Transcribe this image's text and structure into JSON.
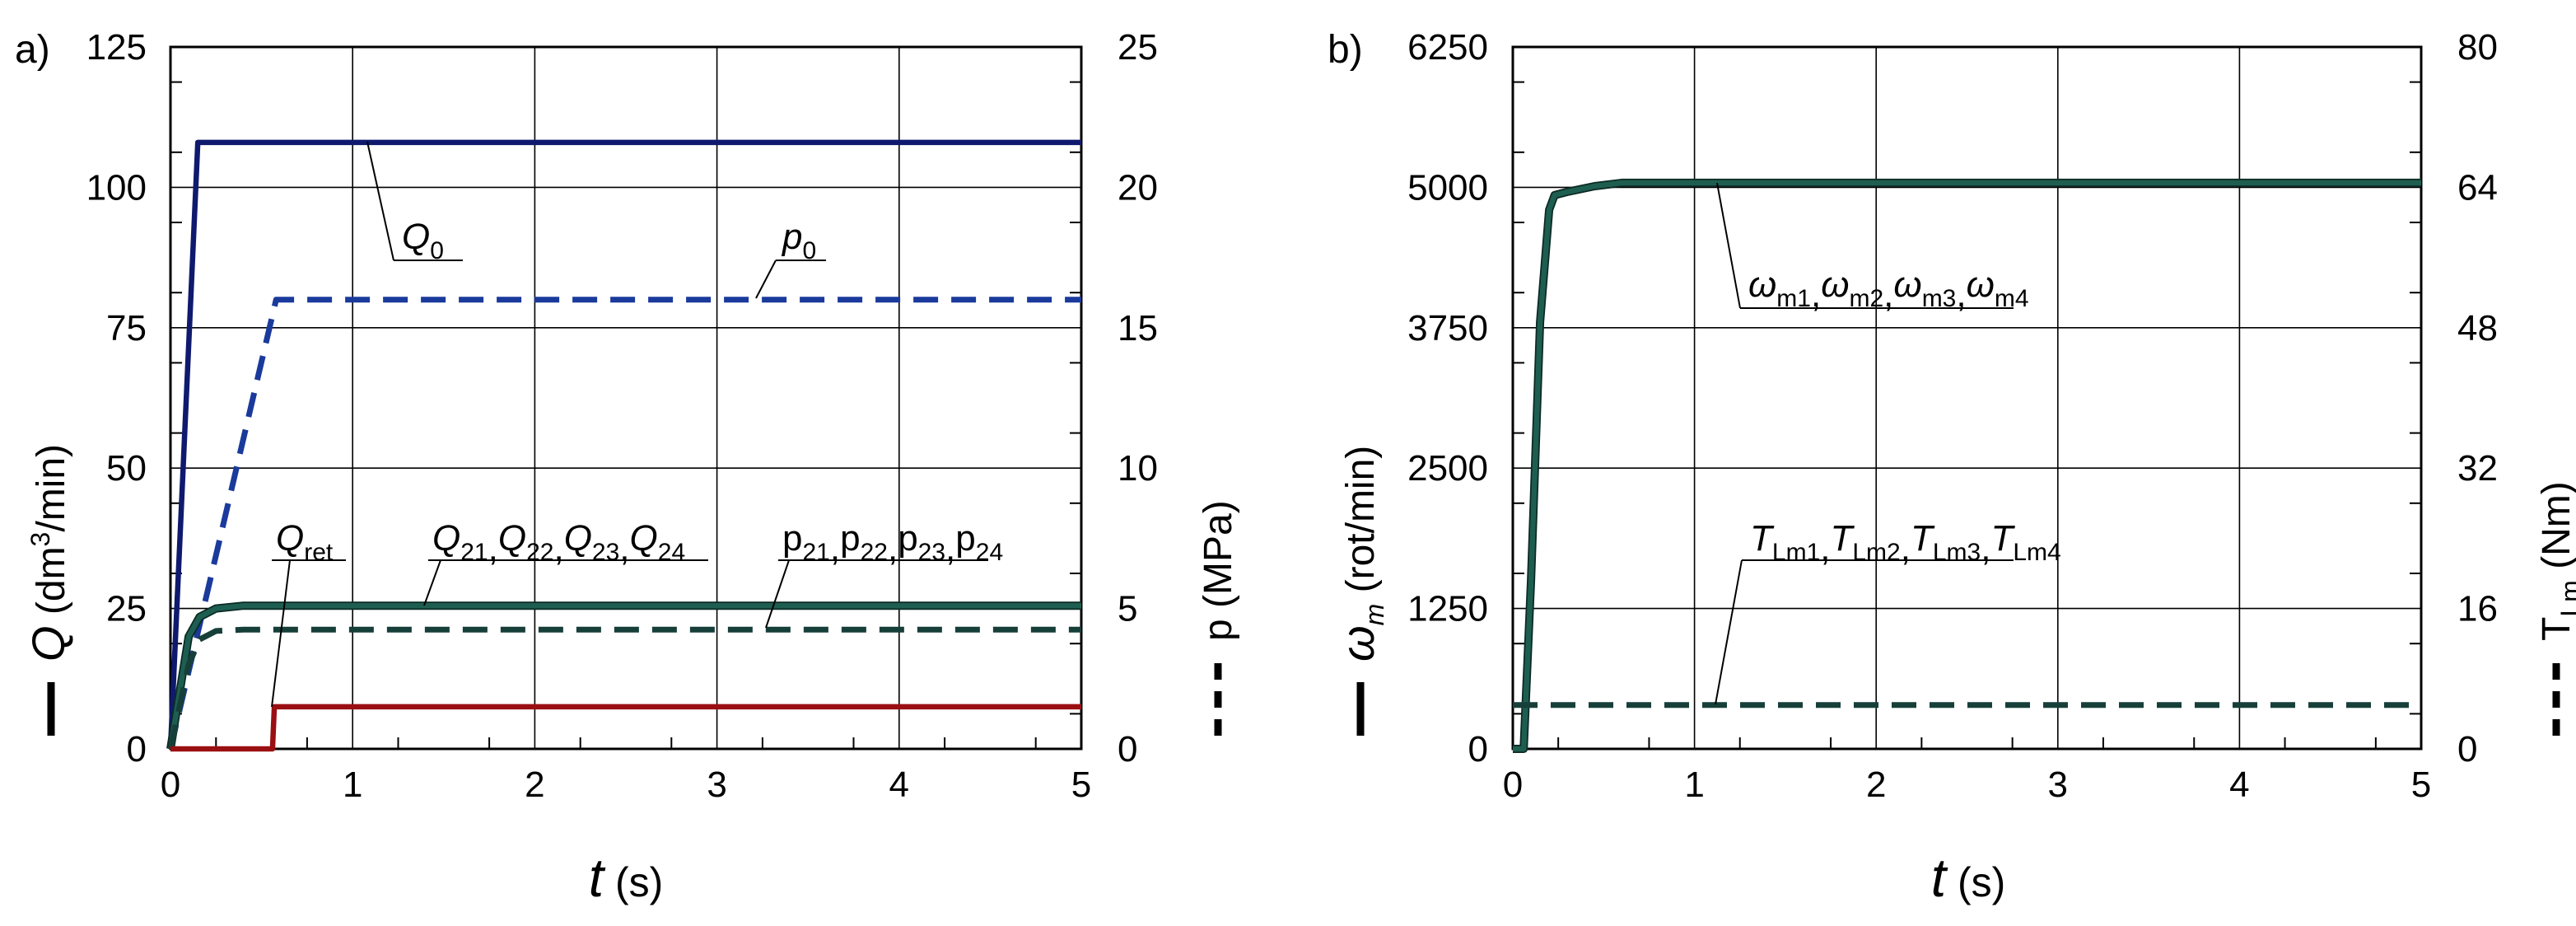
{
  "chart_data": [
    {
      "type": "line",
      "panel_label": "a)",
      "xlabel": {
        "var": "t",
        "unit": " (s)"
      },
      "ylabel_left": {
        "var": "Q",
        "unit_pre": " (dm",
        "sup": "3",
        "unit_post": "/min)"
      },
      "ylabel_right": "p (MPa)",
      "xlim": [
        0,
        5
      ],
      "ylim_left": [
        0,
        125
      ],
      "ylim_right": [
        0,
        25
      ],
      "x_ticks": [
        "0",
        "1",
        "2",
        "3",
        "4",
        "5"
      ],
      "y_ticks_left": [
        "0",
        "25",
        "50",
        "75",
        "100",
        "125"
      ],
      "y_ticks_right": [
        "0",
        "5",
        "10",
        "15",
        "20",
        "25"
      ],
      "grid": true,
      "series": [
        {
          "key": "Q0",
          "axis": "left",
          "style": "solid",
          "color": "#0f1a6e",
          "x": [
            0,
            0.15,
            5
          ],
          "y": [
            0,
            108,
            108
          ]
        },
        {
          "key": "p0",
          "axis": "right",
          "style": "dashed",
          "color": "#1a3a9c",
          "x": [
            0,
            0.58,
            5
          ],
          "y": [
            0,
            16,
            16
          ]
        },
        {
          "key": "Q2x",
          "axis": "left",
          "style": "solid",
          "color": "#1e5e50",
          "x": [
            0,
            0.1,
            0.16,
            0.25,
            0.4,
            5
          ],
          "y": [
            0,
            20,
            23.5,
            25,
            25.5,
            25.5
          ]
        },
        {
          "key": "p2x",
          "axis": "right",
          "style": "dashed",
          "color": "#173f3a",
          "x": [
            0,
            0.1,
            0.16,
            0.25,
            0.4,
            5
          ],
          "y": [
            0,
            3,
            3.9,
            4.2,
            4.25,
            4.25
          ]
        },
        {
          "key": "Qret",
          "axis": "left",
          "style": "solid",
          "color": "#9a0f12",
          "x": [
            0,
            0.56,
            0.57,
            5
          ],
          "y": [
            0,
            0,
            7.5,
            7.5
          ]
        }
      ],
      "annotations": [
        {
          "key": "Q0",
          "main": "Q",
          "subscript": "0",
          "italic_main": true
        },
        {
          "key": "p0",
          "main": "p",
          "subscript": "0",
          "italic_main": true
        },
        {
          "key": "Qret",
          "main": "Q",
          "subscript": "ret",
          "italic_main": true
        },
        {
          "key": "Q2x",
          "parts": [
            [
              "Q",
              "21"
            ],
            [
              "Q",
              "22"
            ],
            [
              "Q",
              "23"
            ],
            [
              "Q",
              "24"
            ]
          ],
          "italic_main": true
        },
        {
          "key": "p2x",
          "parts": [
            [
              "p",
              "21"
            ],
            [
              "p",
              "22"
            ],
            [
              "p",
              "23"
            ],
            [
              "p",
              "24"
            ]
          ],
          "italic_main": false
        }
      ]
    },
    {
      "type": "line",
      "panel_label": "b)",
      "xlabel": {
        "var": "t",
        "unit": " (s)"
      },
      "ylabel_left": {
        "var": "ω",
        "sub": "m",
        "unit": " (rot/min)"
      },
      "ylabel_right": {
        "var": "T",
        "sub": "Lm",
        "unit": " (Nm)"
      },
      "xlim": [
        0,
        5
      ],
      "ylim_left": [
        0,
        6250
      ],
      "ylim_right": [
        0,
        80
      ],
      "x_ticks": [
        "0",
        "1",
        "2",
        "3",
        "4",
        "5"
      ],
      "y_ticks_left": [
        "0",
        "1250",
        "2500",
        "3750",
        "5000",
        "6250"
      ],
      "y_ticks_right": [
        "0",
        "16",
        "32",
        "48",
        "64",
        "80"
      ],
      "grid": true,
      "series": [
        {
          "key": "wm",
          "axis": "left",
          "style": "solid",
          "color": "#1e5e50",
          "x": [
            0,
            0.06,
            0.1,
            0.15,
            0.2,
            0.23,
            0.3,
            0.45,
            0.6,
            5
          ],
          "y": [
            0,
            0,
            1500,
            3800,
            4800,
            4930,
            4960,
            5010,
            5040,
            5040
          ]
        },
        {
          "key": "TLm",
          "axis": "right",
          "style": "dashed",
          "color": "#173f3a",
          "x": [
            0,
            5
          ],
          "y": [
            5,
            5
          ]
        }
      ],
      "annotations": [
        {
          "key": "wm",
          "parts": [
            [
              "ω",
              "m1"
            ],
            [
              "ω",
              "m2"
            ],
            [
              "ω",
              "m3"
            ],
            [
              "ω",
              "m4"
            ]
          ],
          "italic_main": true
        },
        {
          "key": "TLm",
          "parts": [
            [
              "T",
              "Lm1"
            ],
            [
              "T",
              "Lm2"
            ],
            [
              "T",
              "Lm3"
            ],
            [
              "T",
              "Lm4"
            ]
          ],
          "italic_main": true
        }
      ]
    }
  ]
}
